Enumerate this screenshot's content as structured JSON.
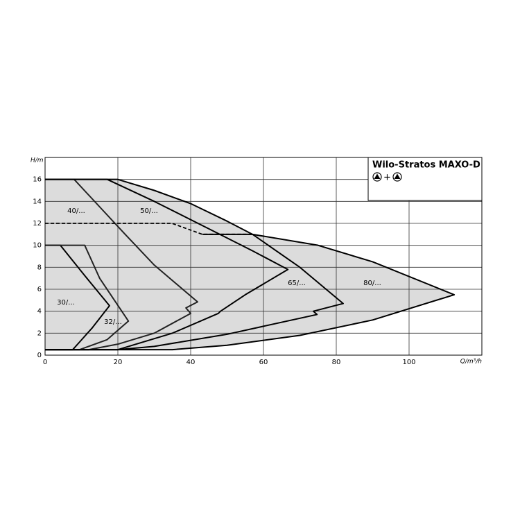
{
  "chart_data": {
    "type": "line",
    "title": "Wilo-Stratos MAXO-D",
    "title_symbol_joiner": "+",
    "x_label": "Q/m³/h",
    "y_label": "H/m",
    "xlim": [
      0,
      120
    ],
    "ylim": [
      0,
      18
    ],
    "xticks": [
      0,
      20,
      40,
      60,
      80,
      100
    ],
    "yticks": [
      0,
      2,
      4,
      6,
      8,
      10,
      12,
      14,
      16
    ],
    "grid": true,
    "fill_color": "#dcdcdc",
    "series": [
      {
        "name": "30/...",
        "color": "#000000",
        "x": [
          0,
          4.2,
          11,
          17.7,
          13,
          9.5,
          7.6,
          0
        ],
        "values": [
          10,
          10,
          7.2,
          4.5,
          2.5,
          1.2,
          0.5,
          0.5
        ]
      },
      {
        "name": "32/...",
        "color": "#222222",
        "x": [
          0,
          10.9,
          15,
          22.9,
          17,
          9.5,
          0
        ],
        "values": [
          10,
          10,
          7,
          3.1,
          1.4,
          0.5,
          0.5
        ]
      },
      {
        "name": "40/...",
        "color": "#222222",
        "x": [
          0,
          8,
          15,
          22,
          30,
          41.9,
          38.7,
          40,
          30,
          20,
          12,
          0
        ],
        "values": [
          16,
          16,
          13.5,
          11,
          8.2,
          4.85,
          4.3,
          3.8,
          2,
          1,
          0.5,
          0.5
        ]
      },
      {
        "name": "50/...",
        "color": "#000000",
        "x": [
          0,
          17.1,
          30,
          45,
          57,
          66.7,
          55,
          48.2,
          47.6,
          35,
          20,
          0
        ],
        "values": [
          16,
          16,
          14,
          11.5,
          9.5,
          7.8,
          5.5,
          4,
          3.8,
          2,
          0.5,
          0.5
        ]
      },
      {
        "name": "65/...",
        "color": "#000000",
        "x": [
          0,
          20,
          30,
          40,
          50,
          57,
          70,
          81.9,
          73.7,
          74.7,
          50,
          30,
          20,
          0
        ],
        "values": [
          16,
          16,
          15,
          13.8,
          12.2,
          11,
          8,
          4.7,
          4,
          3.7,
          1.9,
          0.8,
          0.5,
          0.5
        ]
      },
      {
        "name": "80/...",
        "color": "#000000",
        "x": [
          43.2,
          57,
          75,
          90,
          112.4,
          90,
          70,
          50,
          35,
          0
        ],
        "values": [
          11,
          11,
          10,
          8.5,
          5.5,
          3.2,
          1.8,
          0.9,
          0.5,
          0.5
        ]
      }
    ],
    "dashed_line": {
      "color": "#000000",
      "x": [
        0,
        34.9,
        43.2,
        57
      ],
      "values": [
        12,
        12,
        11,
        11
      ]
    }
  }
}
